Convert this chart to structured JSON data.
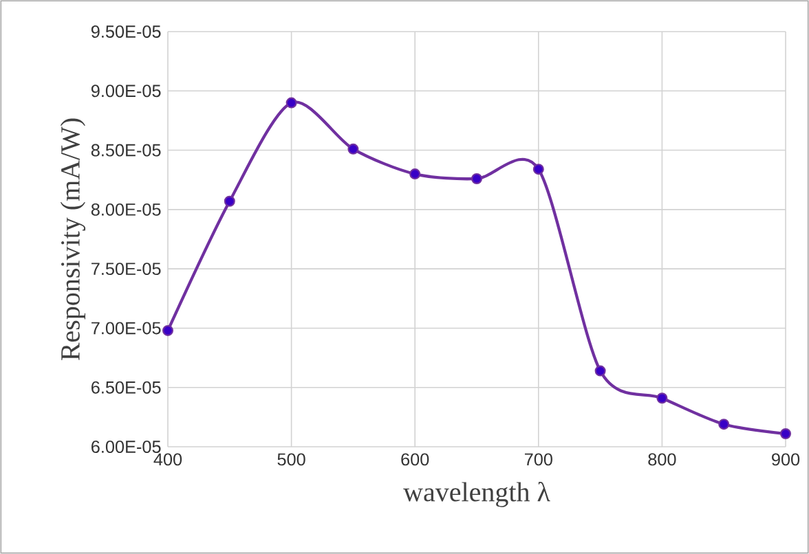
{
  "chart_data": {
    "type": "line",
    "xlabel": "wavelength λ",
    "ylabel": "Responsivity (mA/W)",
    "x": [
      400,
      450,
      500,
      550,
      600,
      650,
      700,
      750,
      800,
      850,
      900
    ],
    "series": [
      {
        "color": "#7030a0",
        "values": [
          6.98e-05,
          8.07e-05,
          8.9e-05,
          8.51e-05,
          8.3e-05,
          8.26e-05,
          8.34e-05,
          6.64e-05,
          6.41e-05,
          6.19e-05,
          6.11e-05
        ]
      }
    ],
    "xlim": [
      400,
      900
    ],
    "xticks": [
      400,
      500,
      600,
      700,
      800,
      900
    ],
    "ylim": [
      6e-05,
      9.5e-05
    ],
    "yticks": [
      {
        "value": 6e-05,
        "label": "6.00E-05"
      },
      {
        "value": 6.5e-05,
        "label": "6.50E-05"
      },
      {
        "value": 7e-05,
        "label": "7.00E-05"
      },
      {
        "value": 7.5e-05,
        "label": "7.50E-05"
      },
      {
        "value": 8e-05,
        "label": "8.00E-05"
      },
      {
        "value": 8.5e-05,
        "label": "8.50E-05"
      },
      {
        "value": 9e-05,
        "label": "9.00E-05"
      },
      {
        "value": 9.5e-05,
        "label": "9.50E-05"
      }
    ],
    "grid": true,
    "marker": "circle",
    "line_style": "solid"
  }
}
